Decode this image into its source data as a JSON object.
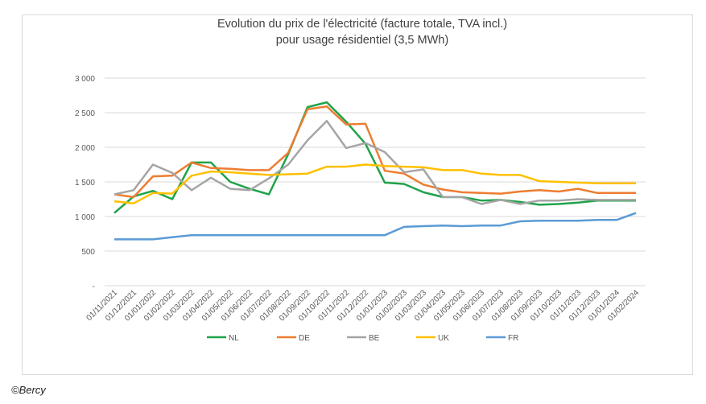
{
  "credit": "©Bercy",
  "chart_data": {
    "type": "line",
    "title": [
      "Evolution du prix de l'électricité (facture totale, TVA incl.)",
      "pour usage résidentiel (3,5 MWh)"
    ],
    "xlabel": "",
    "ylabel": "",
    "ylim": [
      0,
      3000
    ],
    "yticks": [
      3000,
      2500,
      2000,
      1500,
      1000,
      500,
      0
    ],
    "ytick_labels": [
      "3 000",
      "2 500",
      "2 000",
      "1 500",
      "1 000",
      "500",
      "-"
    ],
    "grid": true,
    "legend": "bottom",
    "categories": [
      "01/11/2021",
      "01/12/2021",
      "01/01/2022",
      "01/02/2022",
      "01/03/2022",
      "01/04/2022",
      "01/05/2022",
      "01/06/2022",
      "01/07/2022",
      "01/08/2022",
      "01/09/2022",
      "01/10/2022",
      "01/11/2022",
      "01/12/2022",
      "01/01/2023",
      "01/02/2023",
      "01/03/2023",
      "01/04/2023",
      "01/05/2023",
      "01/06/2023",
      "01/07/2023",
      "01/08/2023",
      "01/09/2023",
      "01/10/2023",
      "01/11/2023",
      "01/12/2023",
      "01/01/2024",
      "01/02/2024"
    ],
    "series": [
      {
        "name": "NL",
        "color": "#1fa34a",
        "values": [
          1050,
          1290,
          1370,
          1250,
          1780,
          1780,
          1500,
          1400,
          1320,
          1900,
          2580,
          2650,
          2370,
          2050,
          1490,
          1470,
          1350,
          1280,
          1280,
          1230,
          1240,
          1210,
          1170,
          1180,
          1200,
          1230,
          1230,
          1230
        ]
      },
      {
        "name": "DE",
        "color": "#ed7d31",
        "values": [
          1320,
          1280,
          1580,
          1590,
          1780,
          1700,
          1690,
          1670,
          1670,
          1920,
          2550,
          2590,
          2330,
          2340,
          1660,
          1620,
          1460,
          1390,
          1350,
          1340,
          1330,
          1360,
          1380,
          1360,
          1400,
          1340,
          1340,
          1340
        ]
      },
      {
        "name": "BE",
        "color": "#a5a5a5",
        "values": [
          1320,
          1380,
          1750,
          1630,
          1380,
          1560,
          1400,
          1380,
          1550,
          1750,
          2100,
          2380,
          1990,
          2060,
          1930,
          1640,
          1680,
          1280,
          1280,
          1180,
          1240,
          1180,
          1230,
          1230,
          1250,
          1240,
          1240,
          1240
        ]
      },
      {
        "name": "UK",
        "color": "#ffc000",
        "values": [
          1220,
          1190,
          1340,
          1330,
          1590,
          1650,
          1640,
          1620,
          1600,
          1610,
          1620,
          1720,
          1720,
          1750,
          1730,
          1720,
          1710,
          1670,
          1670,
          1620,
          1600,
          1600,
          1510,
          1500,
          1490,
          1480,
          1480,
          1480
        ]
      },
      {
        "name": "FR",
        "color": "#5b9bd5",
        "values": [
          670,
          670,
          670,
          700,
          730,
          730,
          730,
          730,
          730,
          730,
          730,
          730,
          730,
          730,
          730,
          850,
          860,
          870,
          860,
          870,
          870,
          930,
          940,
          940,
          940,
          950,
          950,
          1050
        ]
      }
    ]
  }
}
